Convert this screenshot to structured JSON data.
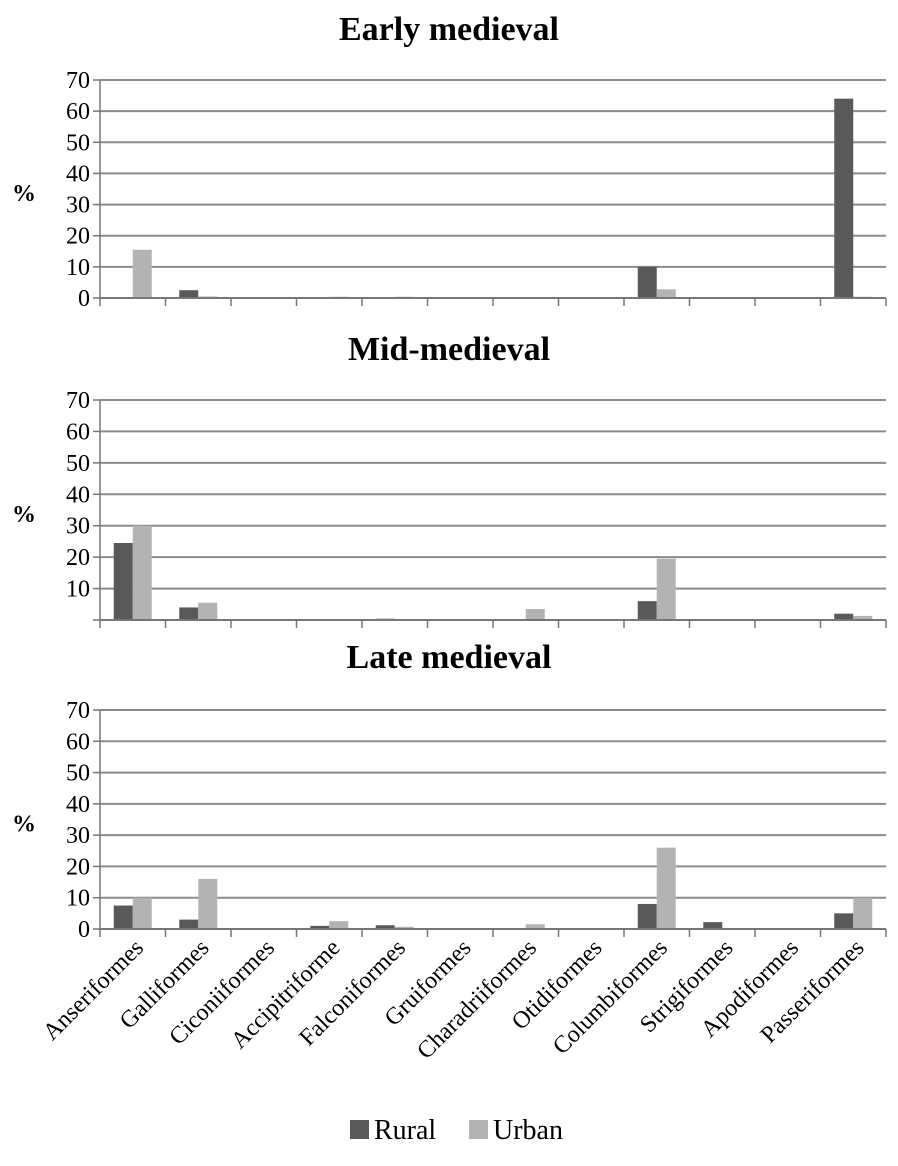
{
  "chart_data": {
    "type": "bar",
    "categories": [
      "Anseriformes",
      "Galliformes",
      "Ciconiiformes",
      "Accipitriforme",
      "Falconiformes",
      "Gruiformes",
      "Charadriiformes",
      "Otidiformes",
      "Columbiformes",
      "Strigiformes",
      "Apodiformes",
      "Passeriformes"
    ],
    "ylabel": "%",
    "ylim": [
      0,
      70
    ],
    "yticks": [
      0,
      10,
      20,
      30,
      40,
      50,
      60,
      70
    ],
    "grid": true,
    "legend": {
      "placement": "bottom",
      "entries": [
        "Rural",
        "Urban"
      ]
    },
    "colors": {
      "Rural": "#595959",
      "Urban": "#b3b3b3"
    },
    "panels": [
      {
        "title": "Early medieval",
        "series": [
          {
            "name": "Rural",
            "values": [
              0.3,
              2.5,
              0.1,
              0.1,
              0.1,
              0,
              0,
              0,
              10,
              0,
              0,
              64
            ]
          },
          {
            "name": "Urban",
            "values": [
              15.5,
              0.5,
              0.2,
              0.4,
              0.4,
              0,
              0,
              0,
              2.8,
              0,
              0,
              0.4
            ]
          }
        ]
      },
      {
        "title": "Mid-medieval",
        "yticks": [
          10,
          20,
          30,
          40,
          50,
          60,
          70
        ],
        "series": [
          {
            "name": "Rural",
            "values": [
              24.5,
              4,
              0,
              0.3,
              0.4,
              0,
              0.2,
              0,
              6,
              0,
              0,
              2
            ]
          },
          {
            "name": "Urban",
            "values": [
              30,
              5.5,
              0,
              0.3,
              0,
              0,
              3.5,
              0,
              19.5,
              0,
              0,
              1.3
            ]
          }
        ]
      },
      {
        "title": "Late medieval",
        "series": [
          {
            "name": "Rural",
            "values": [
              7.5,
              3,
              0.2,
              1,
              1.2,
              0,
              0,
              0.3,
              8,
              2.2,
              0.2,
              5
            ]
          },
          {
            "name": "Urban",
            "values": [
              10,
              16,
              0,
              2.5,
              0.7,
              0.3,
              1.5,
              0.2,
              26,
              0.3,
              0,
              10
            ]
          }
        ]
      }
    ]
  }
}
